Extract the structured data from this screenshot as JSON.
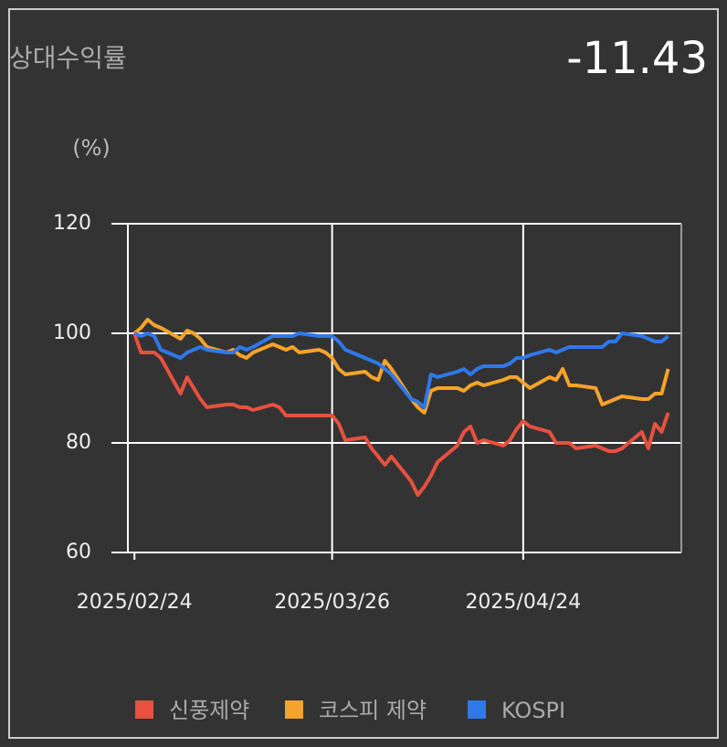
{
  "chart_data": {
    "type": "line",
    "title": "상대수익률",
    "headline_value": -11.43,
    "y_label": "(%)",
    "x": [
      "2025/02/24",
      "2025/02/25",
      "2025/02/26",
      "2025/02/27",
      "2025/02/28",
      "2025/03/03",
      "2025/03/04",
      "2025/03/05",
      "2025/03/06",
      "2025/03/07",
      "2025/03/10",
      "2025/03/11",
      "2025/03/12",
      "2025/03/13",
      "2025/03/14",
      "2025/03/17",
      "2025/03/18",
      "2025/03/19",
      "2025/03/20",
      "2025/03/21",
      "2025/03/24",
      "2025/03/25",
      "2025/03/26",
      "2025/03/27",
      "2025/03/28",
      "2025/03/31",
      "2025/04/01",
      "2025/04/02",
      "2025/04/03",
      "2025/04/04",
      "2025/04/07",
      "2025/04/08",
      "2025/04/09",
      "2025/04/10",
      "2025/04/11",
      "2025/04/14",
      "2025/04/15",
      "2025/04/16",
      "2025/04/17",
      "2025/04/18",
      "2025/04/21",
      "2025/04/22",
      "2025/04/23",
      "2025/04/24",
      "2025/04/25",
      "2025/04/28",
      "2025/04/29",
      "2025/04/30",
      "2025/05/01",
      "2025/05/02",
      "2025/05/05",
      "2025/05/06",
      "2025/05/07",
      "2025/05/08",
      "2025/05/09",
      "2025/05/12",
      "2025/05/13",
      "2025/05/14",
      "2025/05/15",
      "2025/05/16"
    ],
    "series": [
      {
        "name": "신풍제약",
        "color": "#e8503f",
        "values": [
          100,
          96.5,
          96.5,
          96.5,
          95.5,
          89,
          92,
          90,
          88,
          86.5,
          87,
          87,
          86.5,
          86.5,
          86,
          87,
          86.5,
          85,
          85,
          85,
          85,
          85,
          85,
          83.5,
          80.5,
          81,
          79,
          77.5,
          76,
          77.5,
          73,
          70.5,
          72,
          74,
          76.5,
          79.5,
          82,
          83,
          80,
          80.5,
          79.5,
          80.5,
          82.5,
          84,
          83,
          82,
          80,
          80,
          80,
          79,
          79.5,
          79,
          78.5,
          78.5,
          79,
          82,
          79,
          83.5,
          82,
          85.5
        ]
      },
      {
        "name": "코스피 제약",
        "color": "#f5a32a",
        "values": [
          100,
          101,
          102.5,
          101.5,
          101,
          99,
          100.5,
          100,
          99,
          97.5,
          96.5,
          97,
          96,
          95.5,
          96.5,
          98,
          97.5,
          97,
          97.5,
          96.5,
          97,
          96.5,
          95.5,
          93.5,
          92.5,
          93,
          92,
          91.5,
          95,
          93.5,
          88,
          86.5,
          85.5,
          89.5,
          90,
          90,
          89.5,
          90.5,
          91,
          90.5,
          91.5,
          92,
          92,
          91,
          90,
          92,
          91.5,
          93.5,
          90.5,
          90.5,
          90,
          87,
          87.5,
          88,
          88.5,
          88,
          88,
          89,
          89,
          93.5
        ]
      },
      {
        "name": "KOSPI",
        "color": "#2f78ea",
        "values": [
          100,
          99.5,
          100,
          99.5,
          97,
          95.5,
          96.5,
          97,
          97.5,
          97,
          96.5,
          96.5,
          97.5,
          97,
          97.5,
          99.5,
          99.5,
          99.5,
          99.5,
          100,
          99.5,
          99.5,
          99.5,
          98.5,
          97,
          95.5,
          95,
          94.5,
          93.5,
          92.5,
          88,
          87.5,
          86.5,
          92.5,
          92,
          93,
          93.5,
          92.5,
          93.5,
          94,
          94,
          94.5,
          95.5,
          95.5,
          96,
          97,
          96.5,
          97,
          97.5,
          97.5,
          97.5,
          97.5,
          98.5,
          98.5,
          100,
          99.5,
          99,
          98.5,
          98.5,
          99.5
        ]
      }
    ],
    "xlim": [
      "2025/02/23",
      "2025/05/18"
    ],
    "xticks": [
      "2025/02/24",
      "2025/03/26",
      "2025/04/24"
    ],
    "ylim": [
      60,
      120
    ],
    "yticks": [
      60,
      80,
      100,
      120
    ],
    "grid": true,
    "legend": "bottom"
  }
}
